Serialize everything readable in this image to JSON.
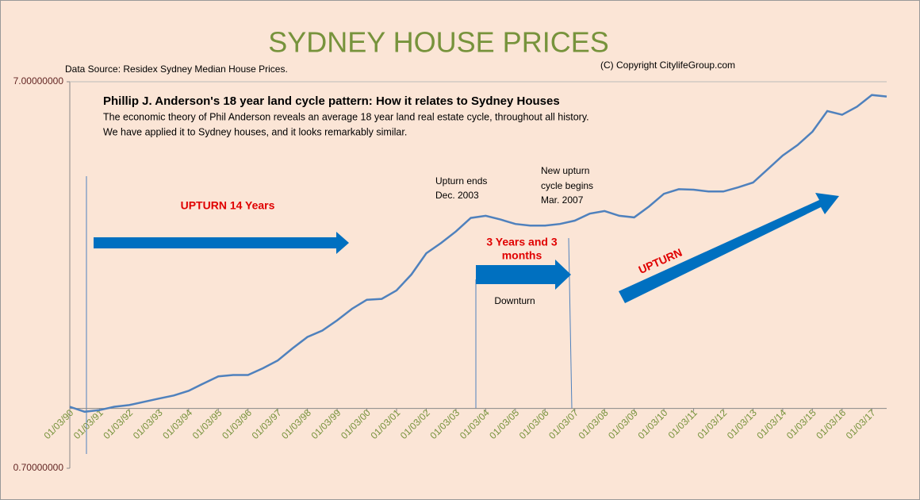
{
  "chart_data": {
    "type": "line",
    "title": "SYDNEY HOUSE PRICES",
    "subtitle": "Data Source: Residex Sydney Median House Prices.",
    "copyright": "(C) Copyright CitylifeGroup.com",
    "annotations": [
      "Phillip J. Anderson's 18 year land cycle pattern:  How it relates to Sydney Houses",
      "The economic theory of Phil Anderson reveals an average 18 year land real estate cycle, throughout all history.",
      "We have applied it to Sydney houses, and it looks remarkably similar.",
      "UPTURN 14 Years",
      "Upturn ends",
      "Dec. 2003",
      "New upturn",
      "cycle begins",
      "Mar. 2007",
      "3 Years and 3",
      "months",
      "Downturn",
      "UPTURN"
    ],
    "x": [
      "01/03/90",
      "01/09/90",
      "01/03/91",
      "01/09/91",
      "01/03/92",
      "01/09/92",
      "01/03/93",
      "01/09/93",
      "01/03/94",
      "01/09/94",
      "01/03/95",
      "01/09/95",
      "01/03/96",
      "01/09/96",
      "01/03/97",
      "01/09/97",
      "01/03/98",
      "01/09/98",
      "01/03/99",
      "01/09/99",
      "01/03/00",
      "01/09/00",
      "01/03/01",
      "01/09/01",
      "01/03/02",
      "01/09/02",
      "01/03/03",
      "01/09/03",
      "01/03/04",
      "01/09/04",
      "01/03/05",
      "01/09/05",
      "01/03/06",
      "01/09/06",
      "01/03/07",
      "01/09/07",
      "01/03/08",
      "01/09/08",
      "01/03/09",
      "01/09/09",
      "01/03/10",
      "01/09/10",
      "01/03/11",
      "01/09/11",
      "01/03/12",
      "01/09/12",
      "01/03/13",
      "01/09/13",
      "01/03/14",
      "01/09/14",
      "01/03/15",
      "01/09/15",
      "01/03/16",
      "01/09/16",
      "01/03/17",
      "01/09/17"
    ],
    "values": [
      1.01,
      0.98,
      0.99,
      1.01,
      1.02,
      1.04,
      1.06,
      1.08,
      1.11,
      1.16,
      1.21,
      1.22,
      1.22,
      1.27,
      1.33,
      1.43,
      1.53,
      1.59,
      1.69,
      1.81,
      1.91,
      1.92,
      2.02,
      2.22,
      2.52,
      2.68,
      2.87,
      3.11,
      3.15,
      3.08,
      3.0,
      2.97,
      2.97,
      3.0,
      3.06,
      3.19,
      3.24,
      3.15,
      3.12,
      3.33,
      3.59,
      3.69,
      3.68,
      3.64,
      3.64,
      3.73,
      3.84,
      4.16,
      4.51,
      4.8,
      5.2,
      5.88,
      5.75,
      6.03,
      6.47,
      6.41
    ],
    "color": "#4f81bd",
    "xlim": [
      "01/03/90",
      "01/09/17"
    ],
    "xticks": [
      "01/03/90",
      "01/03/91",
      "01/03/92",
      "01/03/93",
      "01/03/94",
      "01/03/95",
      "01/03/96",
      "01/03/97",
      "01/03/98",
      "01/03/99",
      "01/03/00",
      "01/03/01",
      "01/03/02",
      "01/03/03",
      "01/03/04",
      "01/03/05",
      "01/03/06",
      "01/03/07",
      "01/03/08",
      "01/03/09",
      "01/03/10",
      "01/03/11",
      "01/03/12",
      "01/03/13",
      "01/03/14",
      "01/03/15",
      "01/03/16",
      "01/03/17"
    ],
    "ylim": [
      0.7,
      7
    ],
    "yticks": [
      {
        "value": 0.7,
        "label": "0.70000000"
      },
      {
        "value": 7,
        "label": "7.00000000"
      }
    ],
    "ylog": true,
    "xaxis_crosses_at": 1
  }
}
